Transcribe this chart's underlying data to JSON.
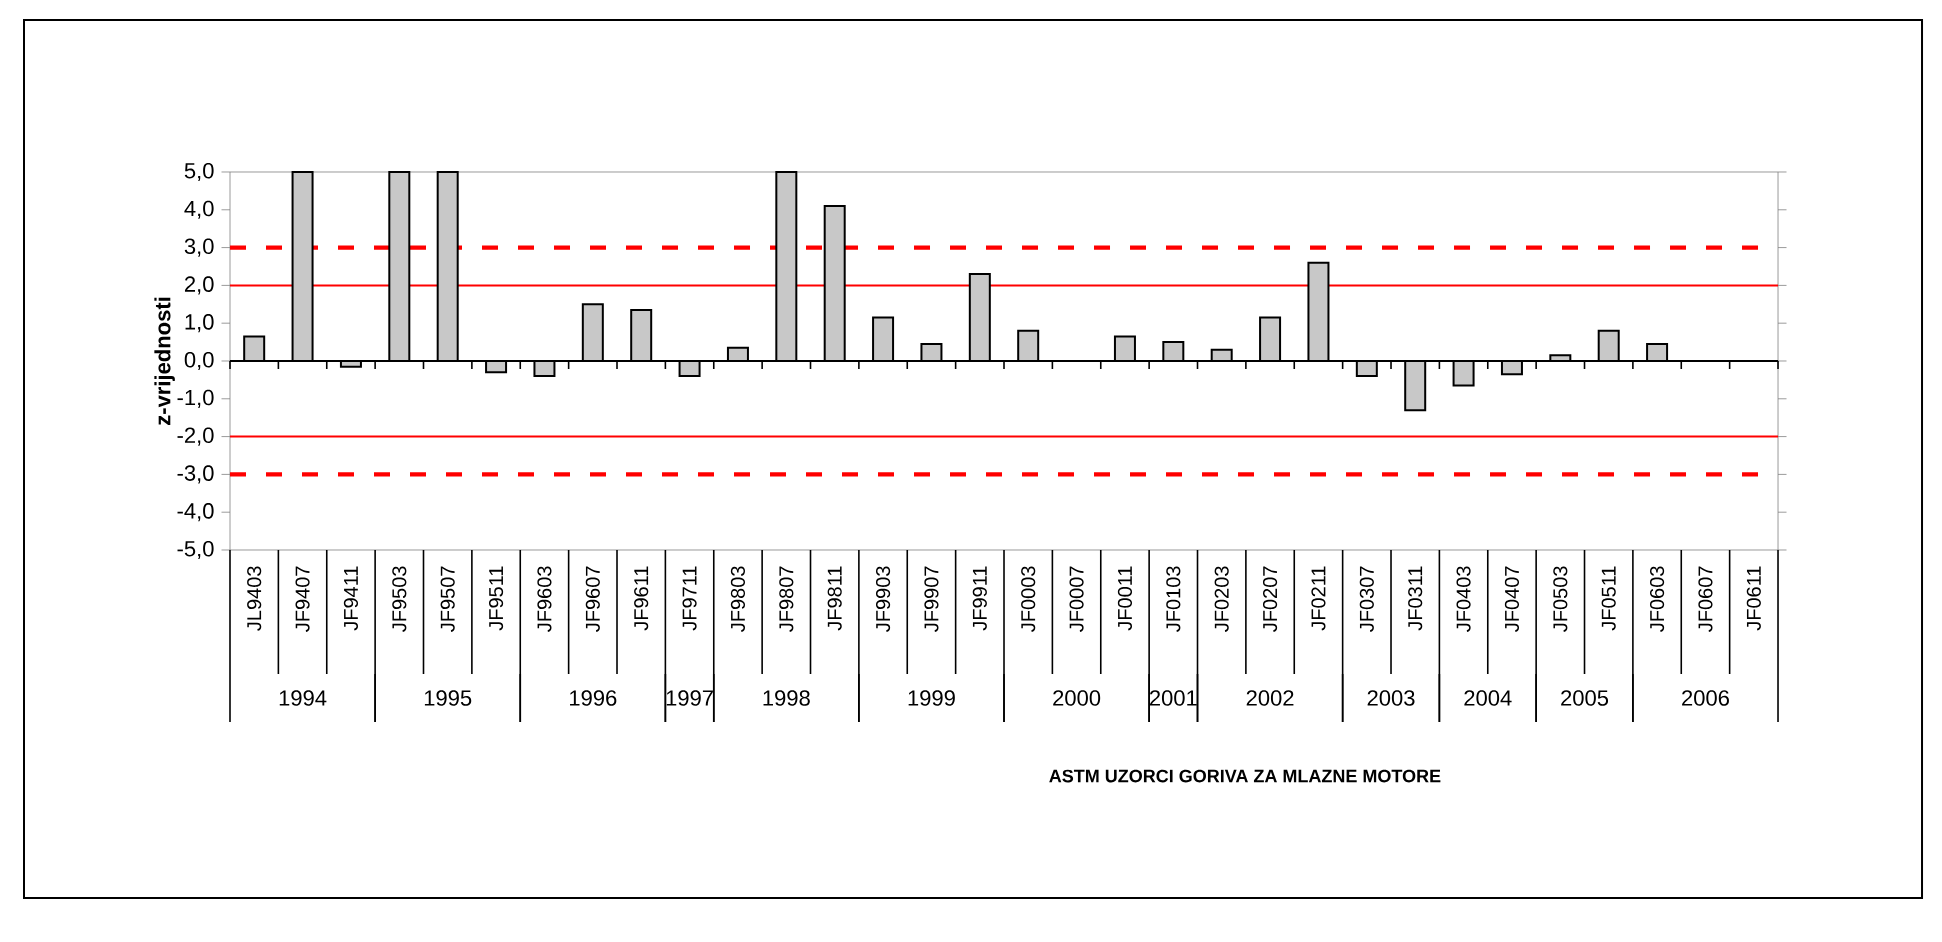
{
  "chart_data": {
    "type": "bar",
    "ylabel": "z-vrijednosti",
    "categories": [
      "JL9403",
      "JF9407",
      "JF9411",
      "JF9503",
      "JF9507",
      "JF9511",
      "JF9603",
      "JF9607",
      "JF9611",
      "JF9711",
      "JF9803",
      "JF9807",
      "JF9811",
      "JF9903",
      "JF9907",
      "JF9911",
      "JF0003",
      "JF0007",
      "JF0011",
      "JF0103",
      "JF0203",
      "JF0207",
      "JF0211",
      "JF0307",
      "JF0311",
      "JF0403",
      "JF0407",
      "JF0503",
      "JF0511",
      "JF0603",
      "JF0607",
      "JF0611"
    ],
    "values": [
      0.65,
      5.0,
      -0.15,
      5.0,
      5.0,
      -0.3,
      -0.4,
      1.5,
      1.35,
      -0.4,
      0.35,
      5.0,
      4.1,
      1.15,
      0.45,
      2.3,
      0.8,
      null,
      0.65,
      0.5,
      0.3,
      1.15,
      2.6,
      -0.4,
      -1.3,
      -0.65,
      -0.35,
      0.15,
      0.8,
      0.45,
      null,
      null
    ],
    "color": "#c8c8c8",
    "ylim": [
      -5,
      5
    ],
    "yticks": [
      {
        "value": -5,
        "label": "-5,0"
      },
      {
        "value": -4,
        "label": "-4,0"
      },
      {
        "value": -3,
        "label": "-3,0"
      },
      {
        "value": -2,
        "label": "-2,0"
      },
      {
        "value": -1,
        "label": "-1,0"
      },
      {
        "value": 0,
        "label": "0,0"
      },
      {
        "value": 1,
        "label": "1,0"
      },
      {
        "value": 2,
        "label": "2,0"
      },
      {
        "value": 3,
        "label": "3,0"
      },
      {
        "value": 4,
        "label": "4,0"
      },
      {
        "value": 5,
        "label": "5,0"
      }
    ],
    "ref_lines": [
      {
        "axis": "y",
        "value": 3,
        "color": "#ff0000",
        "line_style": "dashed"
      },
      {
        "axis": "y",
        "value": 2,
        "color": "#ff0000",
        "line_style": "solid"
      },
      {
        "axis": "y",
        "value": -2,
        "color": "#ff0000",
        "line_style": "solid"
      },
      {
        "axis": "y",
        "value": -3,
        "color": "#ff0000",
        "line_style": "dashed"
      }
    ],
    "annotations": [
      "1994",
      "1995",
      "1996",
      "1997",
      "1998",
      "1999",
      "2000",
      "2001",
      "2002",
      "2003",
      "2004",
      "2005",
      "2006",
      "ASTM UZORCI GORIVA ZA MLAZNE MOTORE"
    ]
  }
}
